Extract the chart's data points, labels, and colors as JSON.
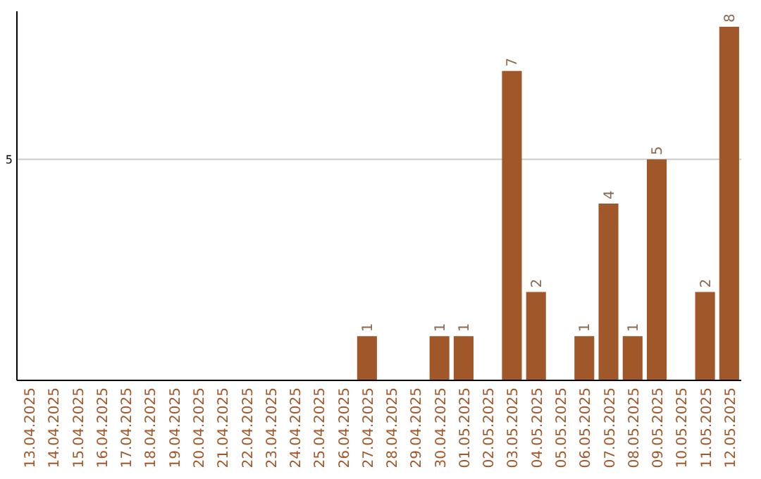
{
  "chart_data": {
    "type": "bar",
    "categories": [
      "13.04.2025",
      "14.04.2025",
      "15.04.2025",
      "16.04.2025",
      "17.04.2025",
      "18.04.2025",
      "19.04.2025",
      "20.04.2025",
      "21.04.2025",
      "22.04.2025",
      "23.04.2025",
      "24.04.2025",
      "25.04.2025",
      "26.04.2025",
      "27.04.2025",
      "28.04.2025",
      "29.04.2025",
      "30.04.2025",
      "01.05.2025",
      "02.05.2025",
      "03.05.2025",
      "04.05.2025",
      "05.05.2025",
      "06.05.2025",
      "07.05.2025",
      "08.05.2025",
      "09.05.2025",
      "10.05.2025",
      "11.05.2025",
      "12.05.2025"
    ],
    "values": [
      null,
      null,
      null,
      null,
      null,
      null,
      null,
      null,
      null,
      null,
      null,
      null,
      null,
      null,
      1,
      null,
      null,
      1,
      1,
      null,
      7,
      2,
      null,
      1,
      4,
      1,
      5,
      null,
      2,
      8
    ],
    "value_labels": [
      null,
      null,
      null,
      null,
      null,
      null,
      null,
      null,
      null,
      null,
      null,
      null,
      null,
      null,
      "1",
      null,
      null,
      "1",
      "1",
      null,
      "7",
      "2",
      null,
      "1",
      "4",
      "1",
      "5",
      null,
      "2",
      "8"
    ],
    "color": "#a0582a",
    "ylim": [
      0,
      8.35
    ],
    "yticks": [
      5
    ],
    "grid": "y"
  }
}
